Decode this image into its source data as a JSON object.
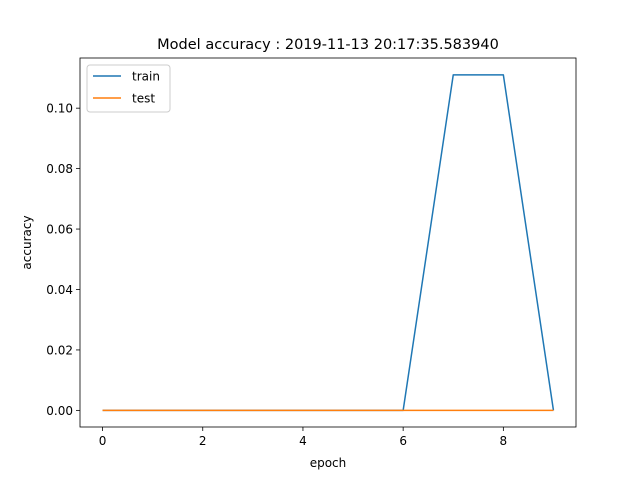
{
  "chart_data": {
    "type": "line",
    "title": "Model accuracy : 2019-11-13 20:17:35.583940",
    "xlabel": "epoch",
    "ylabel": "accuracy",
    "xlim": [
      -0.45,
      9.45
    ],
    "ylim": [
      -0.0055,
      0.1166
    ],
    "xticks": [
      0,
      2,
      4,
      6,
      8
    ],
    "xtick_labels": [
      "0",
      "2",
      "4",
      "6",
      "8"
    ],
    "yticks": [
      0.0,
      0.02,
      0.04,
      0.06,
      0.08,
      0.1
    ],
    "ytick_labels": [
      "0.00",
      "0.02",
      "0.04",
      "0.06",
      "0.08",
      "0.10"
    ],
    "grid": false,
    "legend_position": "upper-left",
    "x": [
      0,
      1,
      2,
      3,
      4,
      5,
      6,
      7,
      8,
      9
    ],
    "series": [
      {
        "name": "train",
        "color": "#1f77b4",
        "values": [
          0.0,
          0.0,
          0.0,
          0.0,
          0.0,
          0.0,
          0.0,
          0.111,
          0.111,
          0.0
        ]
      },
      {
        "name": "test",
        "color": "#ff7f0e",
        "values": [
          0.0,
          0.0,
          0.0,
          0.0,
          0.0,
          0.0,
          0.0,
          0.0,
          0.0,
          0.0
        ]
      }
    ]
  }
}
